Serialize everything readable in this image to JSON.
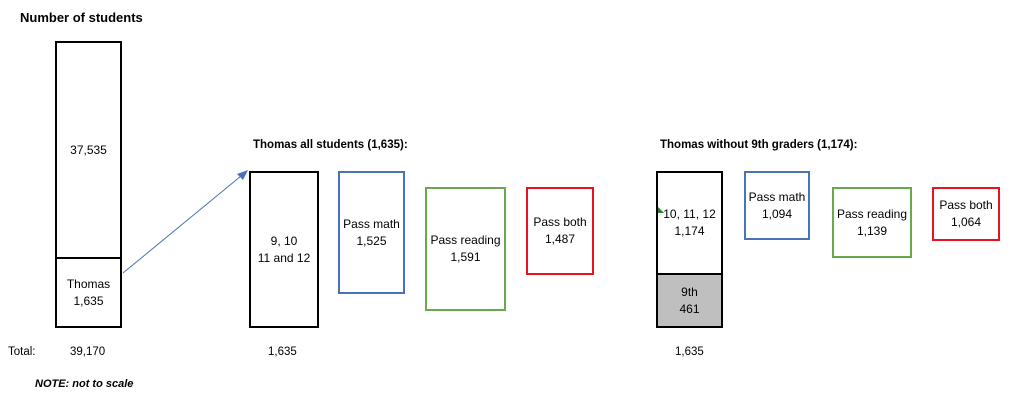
{
  "title": "Number of students",
  "left_bar": {
    "top_value": "37,535",
    "bottom_label": "Thomas",
    "bottom_value": "1,635"
  },
  "totals": {
    "label": "Total:",
    "all": "39,170",
    "thomas_all": "1,635",
    "thomas_no9": "1,635"
  },
  "note": "NOTE: not to scale",
  "section1": {
    "heading": "Thomas all students (1,635):",
    "grades_line1": "9, 10",
    "grades_line2": "11 and 12",
    "pass_math_label": "Pass math",
    "pass_math_value": "1,525",
    "pass_reading_label": "Pass reading",
    "pass_reading_value": "1,591",
    "pass_both_label": "Pass both",
    "pass_both_value": "1,487"
  },
  "section2": {
    "heading": "Thomas without 9th graders (1,174):",
    "grades_label": "10, 11, 12",
    "grades_value": "1,174",
    "ninth_label": "9th",
    "ninth_value": "461",
    "pass_math_label": "Pass math",
    "pass_math_value": "1,094",
    "pass_reading_label": "Pass reading",
    "pass_reading_value": "1,139",
    "pass_both_label": "Pass both",
    "pass_both_value": "1,064"
  },
  "colors": {
    "math": "#4a72b8",
    "reading": "#6aa84f",
    "both": "#e8131f",
    "ninth_fill": "#bfbfbf",
    "arrow": "#4a72b8"
  },
  "icons": {
    "arrow": "arrow-right-up-icon"
  }
}
